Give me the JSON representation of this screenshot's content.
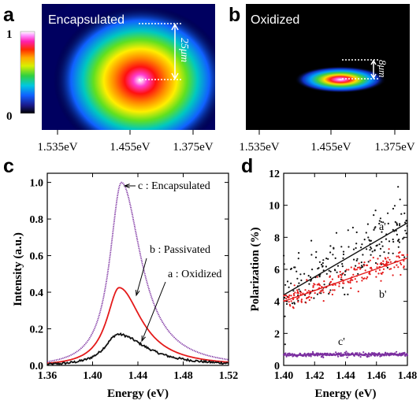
{
  "panels": {
    "a": {
      "letter": "a",
      "label": "Encapsulated",
      "scale_text": "25μm",
      "colorbar": {
        "max_label": "1",
        "min_label": "0"
      },
      "x_ticks": [
        "1.535eV",
        "1.455eV",
        "1.375eV"
      ]
    },
    "b": {
      "letter": "b",
      "label": "Oxidized",
      "scale_text": "8μm",
      "x_ticks": [
        "1.535eV",
        "1.455eV",
        "1.375eV"
      ]
    }
  },
  "chart_data": [
    {
      "panel": "c",
      "type": "line",
      "xlabel": "Energy (eV)",
      "ylabel": "Intensity (a.u.)",
      "xlim": [
        1.36,
        1.52
      ],
      "ylim": [
        0.0,
        1.05
      ],
      "x_ticks": [
        1.36,
        1.4,
        1.44,
        1.48,
        1.52
      ],
      "y_ticks": [
        0.0,
        0.2,
        0.4,
        0.6,
        0.8,
        1.0
      ],
      "series": [
        {
          "name": "c : Encapsulated",
          "color": "#7b2fa0",
          "peak_x": 1.4255,
          "peak_y": 1.0,
          "width_left": 0.0125,
          "width_right": 0.021,
          "base": 0.0
        },
        {
          "name": "b : Passivated",
          "color": "#e41a1a",
          "peak_x": 1.4235,
          "peak_y": 0.425,
          "width_left": 0.0135,
          "width_right": 0.024,
          "base": 0.0
        },
        {
          "name": "a : Oxidized",
          "color": "#111111",
          "peak_x": 1.4225,
          "peak_y": 0.17,
          "width_left": 0.0145,
          "width_right": 0.03,
          "base": 0.0
        }
      ],
      "annotations": [
        "c : Encapsulated",
        "b : Passivated",
        "a : Oxidized"
      ]
    },
    {
      "panel": "d",
      "type": "scatter",
      "xlabel": "Energy (eV)",
      "ylabel": "Polarization (%)",
      "xlim": [
        1.4,
        1.48
      ],
      "ylim": [
        0,
        12
      ],
      "x_ticks": [
        1.4,
        1.42,
        1.44,
        1.46,
        1.48
      ],
      "y_ticks": [
        0,
        2,
        4,
        6,
        8,
        10,
        12
      ],
      "series": [
        {
          "name": "a'",
          "color": "#111111",
          "fit": [
            [
              1.4,
              4.4
            ],
            [
              1.48,
              8.9
            ]
          ],
          "scatter_sd": 0.9
        },
        {
          "name": "b'",
          "color": "#e41a1a",
          "fit": [
            [
              1.4,
              4.0
            ],
            [
              1.48,
              6.7
            ]
          ],
          "scatter_sd": 0.35
        },
        {
          "name": "c'",
          "color": "#7b2fa0",
          "fit": [
            [
              1.4,
              0.65
            ],
            [
              1.48,
              0.7
            ]
          ],
          "scatter_sd": 0.06
        }
      ]
    }
  ]
}
